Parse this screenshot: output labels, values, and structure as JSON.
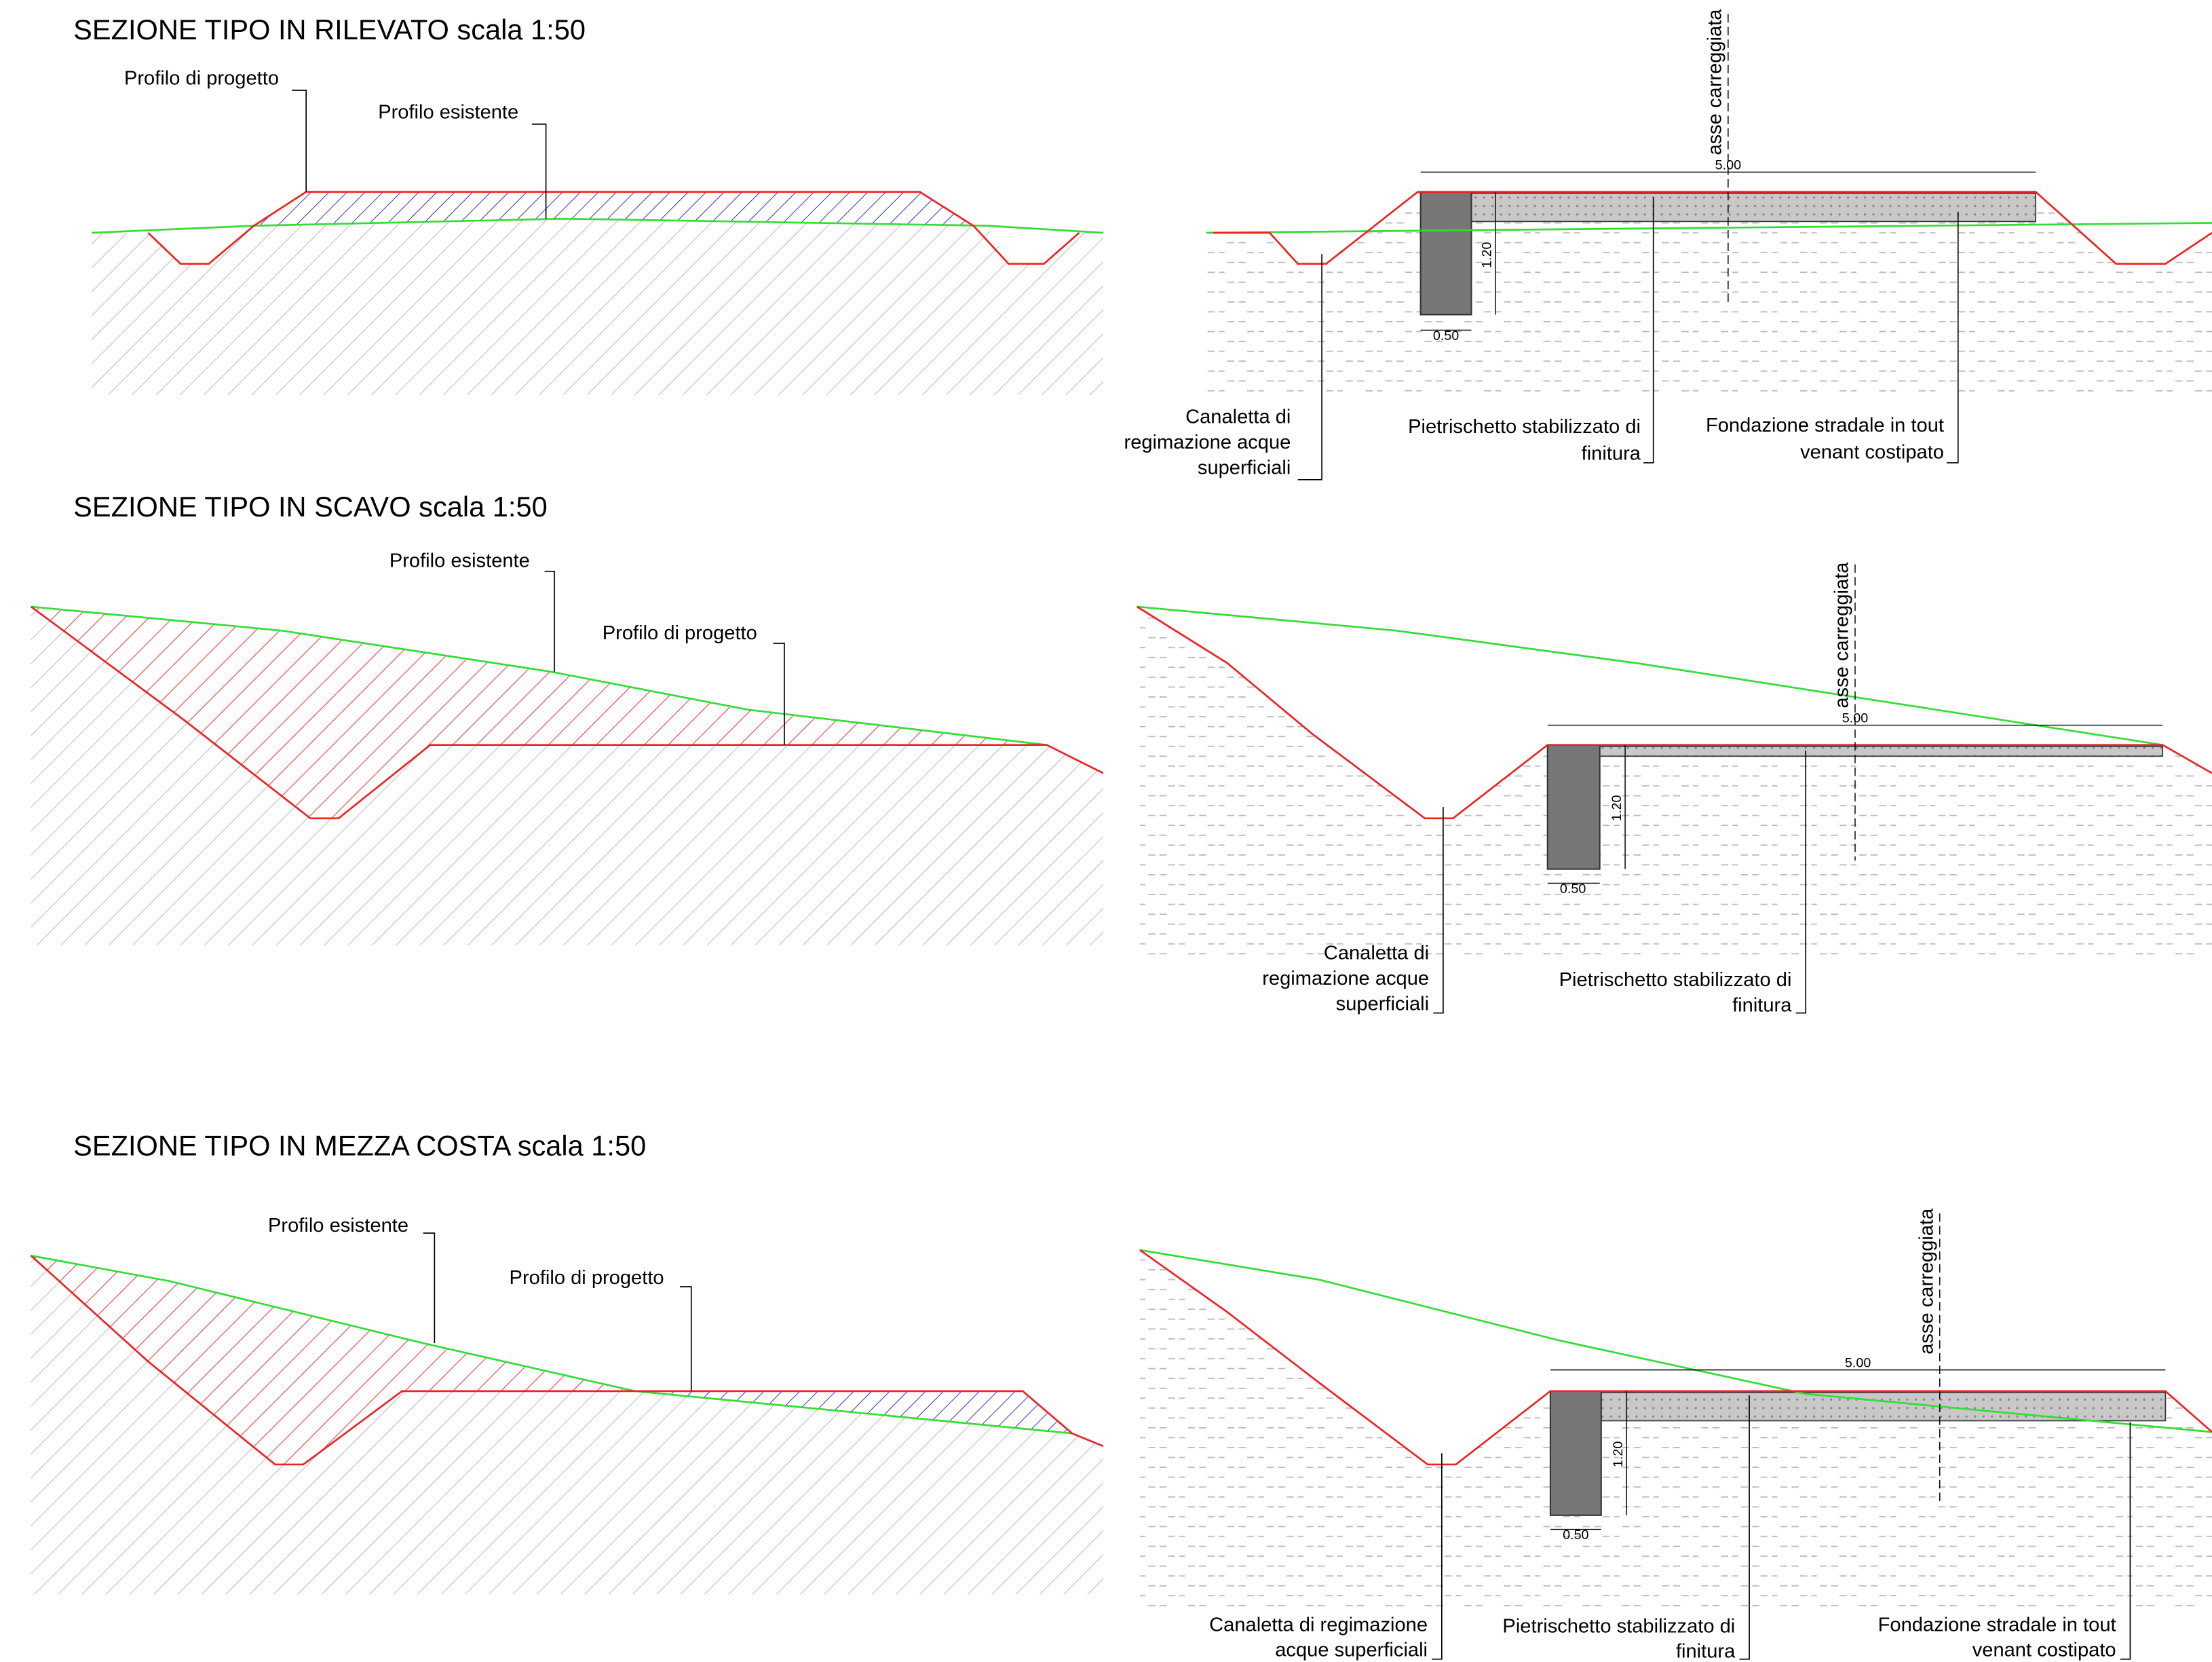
{
  "sections": [
    {
      "title": "SEZIONE TIPO IN RILEVATO scala 1:50",
      "left_labels": [
        "Profilo di progetto",
        "Profilo esistente"
      ],
      "right": {
        "axis": "asse carreggiata",
        "width": "5.00",
        "depth": "1.20",
        "base": "0.50",
        "labels": [
          [
            "Canaletta di",
            "regimazione acque",
            "superficiali"
          ],
          [
            "Pietrischetto stabilizzato di",
            "finitura"
          ],
          [
            "Fondazione stradale in tout",
            "venant costipato"
          ]
        ]
      }
    },
    {
      "title": "SEZIONE TIPO IN SCAVO scala 1:50",
      "left_labels": [
        "Profilo esistente",
        "Profilo di progetto"
      ],
      "right": {
        "axis": "asse carreggiata",
        "width": "5.00",
        "depth": "1.20",
        "base": "0.50",
        "labels": [
          [
            "Canaletta di",
            "regimazione acque",
            "superficiali"
          ],
          [
            "Pietrischetto stabilizzato di",
            "finitura"
          ]
        ]
      }
    },
    {
      "title": "SEZIONE TIPO IN MEZZA COSTA scala 1:50",
      "left_labels": [
        "Profilo esistente",
        "Profilo di progetto"
      ],
      "right": {
        "axis": "asse carreggiata",
        "width": "5.00",
        "depth": "1.20",
        "base": "0.50",
        "labels": [
          [
            "Canaletta di regimazione",
            "acque superficiali"
          ],
          [
            "Pietrischetto stabilizzato di",
            "finitura"
          ],
          [
            "Fondazione stradale in tout",
            "venant costipato"
          ]
        ]
      }
    }
  ]
}
